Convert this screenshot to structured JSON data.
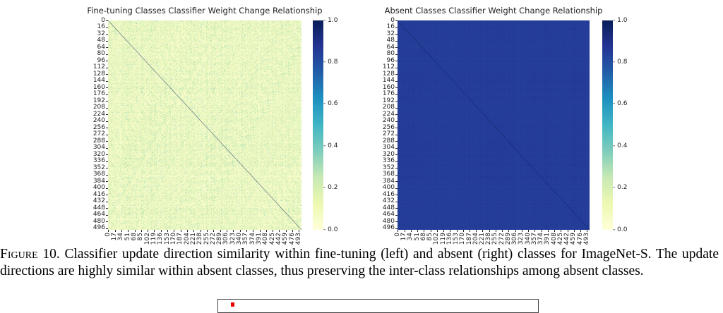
{
  "chart_data": [
    {
      "type": "heatmap",
      "title": "Fine-tuning Classes Classifier Weight Change Relationship",
      "colormap": "YlGnBu",
      "clim": [
        0.0,
        1.0
      ],
      "n_classes": 500,
      "diagonal_value": 1.0,
      "offdiagonal_typical_range": [
        0.0,
        0.4
      ],
      "xticks": [
        "0",
        "17",
        "34",
        "51",
        "68",
        "85",
        "102",
        "119",
        "136",
        "153",
        "170",
        "187",
        "204",
        "221",
        "238",
        "255",
        "272",
        "289",
        "306",
        "323",
        "340",
        "357",
        "374",
        "391",
        "408",
        "425",
        "442",
        "459",
        "476",
        "493"
      ],
      "yticks": [
        "0",
        "16",
        "32",
        "48",
        "64",
        "80",
        "96",
        "112",
        "128",
        "144",
        "160",
        "176",
        "192",
        "208",
        "224",
        "240",
        "256",
        "272",
        "288",
        "304",
        "320",
        "336",
        "352",
        "368",
        "384",
        "400",
        "416",
        "432",
        "448",
        "464",
        "480",
        "496"
      ],
      "colorbar_ticks": [
        "0.0",
        "0.2",
        "0.4",
        "0.6",
        "0.8",
        "1.0"
      ]
    },
    {
      "type": "heatmap",
      "title": "Absent Classes Classifier Weight Change Relationship",
      "colormap": "YlGnBu",
      "clim": [
        0.0,
        1.0
      ],
      "n_classes": 500,
      "diagonal_value": 1.0,
      "offdiagonal_typical_range": [
        0.8,
        0.9
      ],
      "xticks": [
        "0",
        "17",
        "34",
        "51",
        "68",
        "85",
        "102",
        "119",
        "136",
        "153",
        "170",
        "187",
        "204",
        "221",
        "238",
        "255",
        "272",
        "289",
        "306",
        "323",
        "340",
        "357",
        "374",
        "391",
        "408",
        "425",
        "442",
        "459",
        "476",
        "493"
      ],
      "yticks": [
        "0",
        "16",
        "32",
        "48",
        "64",
        "80",
        "96",
        "112",
        "128",
        "144",
        "160",
        "176",
        "192",
        "208",
        "224",
        "240",
        "256",
        "272",
        "288",
        "304",
        "320",
        "336",
        "352",
        "368",
        "384",
        "400",
        "416",
        "432",
        "448",
        "464",
        "480",
        "496"
      ],
      "colorbar_ticks": [
        "0.0",
        "0.2",
        "0.4",
        "0.6",
        "0.8",
        "1.0"
      ]
    }
  ],
  "caption": {
    "label": "Figure 10.",
    "text": " Classifier update direction similarity within fine-tuning (left) and absent (right) classes for ImageNet-S. The update directions are highly similar within absent classes, thus preserving the inter-class relationships among absent classes."
  }
}
